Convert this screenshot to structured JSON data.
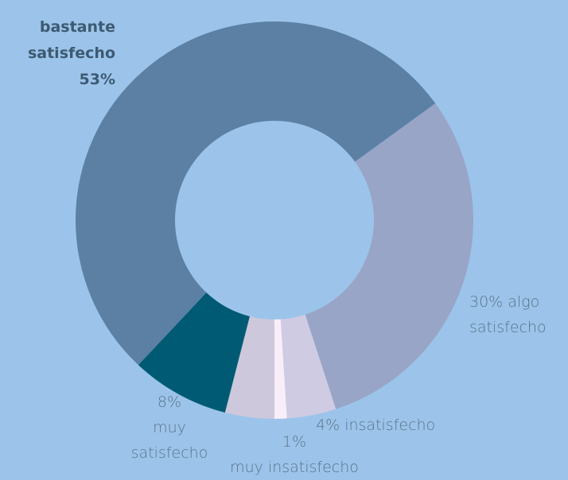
{
  "chart_data": {
    "type": "donut",
    "categories": [
      "algo satisfecho",
      "insatisfecho",
      "muy insatisfecho",
      null,
      "muy satisfecho",
      "bastante satisfecho"
    ],
    "values": [
      30,
      4,
      1,
      4,
      8,
      53
    ],
    "value_labels": [
      "30%",
      "4%",
      "1%",
      null,
      "8%",
      "53%"
    ],
    "colors": [
      "#98a5c6",
      "#cfcbe2",
      "#f8eef9",
      "#cdc8dc",
      "#015a74",
      "#5b80a4"
    ]
  }
}
